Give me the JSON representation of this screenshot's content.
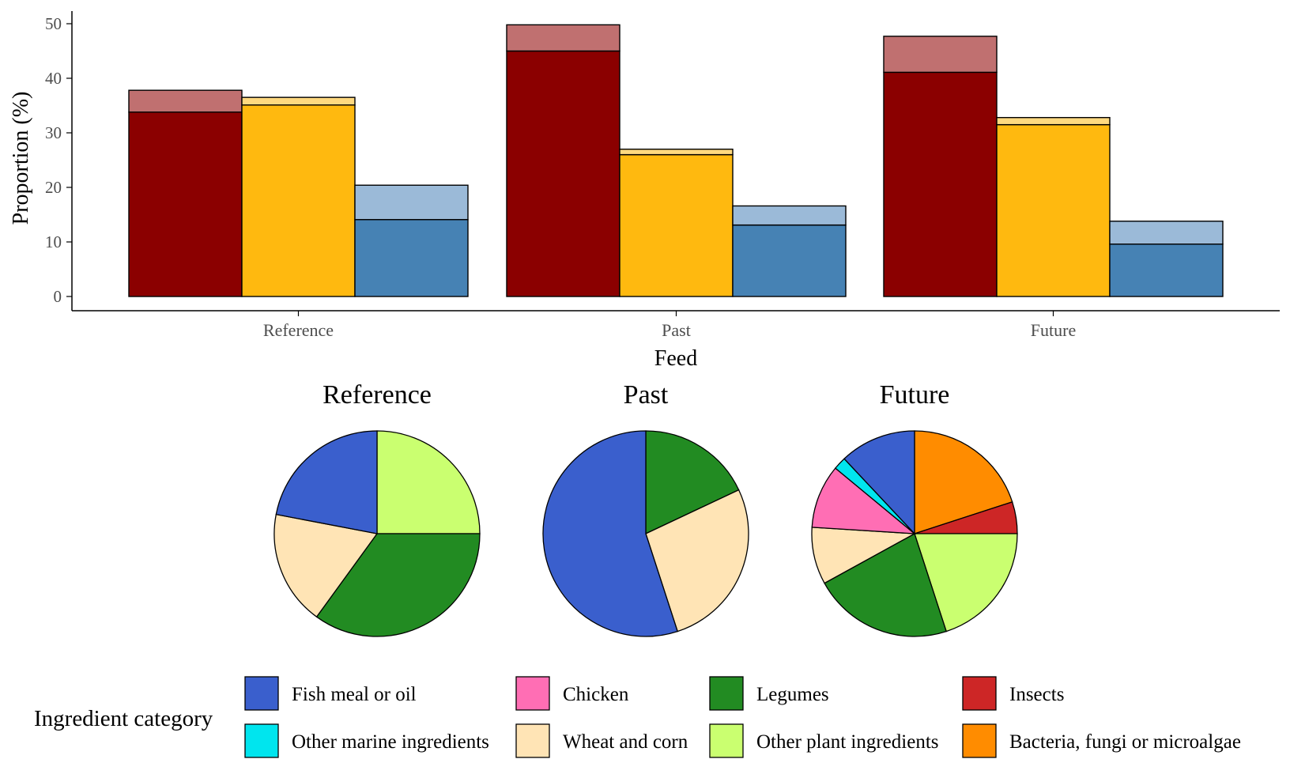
{
  "chart_data": [
    {
      "type": "bar",
      "xlabel": "Feed",
      "ylabel": "Proportion (%)",
      "categories": [
        "Reference",
        "Past",
        "Future"
      ],
      "ylim": [
        0,
        52
      ],
      "yticks": [
        0,
        10,
        20,
        30,
        40,
        50
      ],
      "grid": false,
      "series": [
        {
          "base": [
            33.8,
            45.0,
            41.1
          ],
          "total": [
            37.8,
            49.8,
            47.7
          ],
          "color": "#8B0000",
          "top_color": "#C07070"
        },
        {
          "base": [
            35.1,
            26.0,
            31.5
          ],
          "total": [
            36.5,
            27.0,
            32.8
          ],
          "color": "#FFB90F",
          "top_color": "#FFD980"
        },
        {
          "base": [
            14.1,
            13.1,
            9.6
          ],
          "total": [
            20.4,
            16.6,
            13.8
          ],
          "color": "#4682B4",
          "top_color": "#9BBAD8"
        }
      ]
    },
    {
      "type": "pie",
      "pies": [
        {
          "title": "Reference",
          "slices": [
            {
              "category": "Other plant ingredients",
              "value": 25
            },
            {
              "category": "Legumes",
              "value": 35
            },
            {
              "category": "Wheat and corn",
              "value": 18
            },
            {
              "category": "Fish meal or oil",
              "value": 22
            }
          ]
        },
        {
          "title": "Past",
          "slices": [
            {
              "category": "Legumes",
              "value": 18
            },
            {
              "category": "Wheat and corn",
              "value": 27
            },
            {
              "category": "Fish meal or oil",
              "value": 55
            }
          ]
        },
        {
          "title": "Future",
          "slices": [
            {
              "category": "Bacteria, fungi or microalgae",
              "value": 20
            },
            {
              "category": "Insects",
              "value": 5
            },
            {
              "category": "Other plant ingredients",
              "value": 20
            },
            {
              "category": "Legumes",
              "value": 22
            },
            {
              "category": "Wheat and corn",
              "value": 9
            },
            {
              "category": "Chicken",
              "value": 10
            },
            {
              "category": "Other marine ingredients",
              "value": 2
            },
            {
              "category": "Fish meal or oil",
              "value": 12
            }
          ]
        }
      ]
    }
  ],
  "legend": {
    "title": "Ingredient category",
    "items": [
      {
        "label": "Fish meal or oil",
        "color": "#3A5FCD"
      },
      {
        "label": "Chicken",
        "color": "#FF6EB4"
      },
      {
        "label": "Legumes",
        "color": "#228B22"
      },
      {
        "label": "Insects",
        "color": "#CD2626"
      },
      {
        "label": "Other marine ingredients",
        "color": "#00E5EE"
      },
      {
        "label": "Wheat and corn",
        "color": "#FFE4B5"
      },
      {
        "label": "Other plant ingredients",
        "color": "#CAFF70"
      },
      {
        "label": "Bacteria, fungi or microalgae",
        "color": "#FF8C00"
      }
    ]
  }
}
